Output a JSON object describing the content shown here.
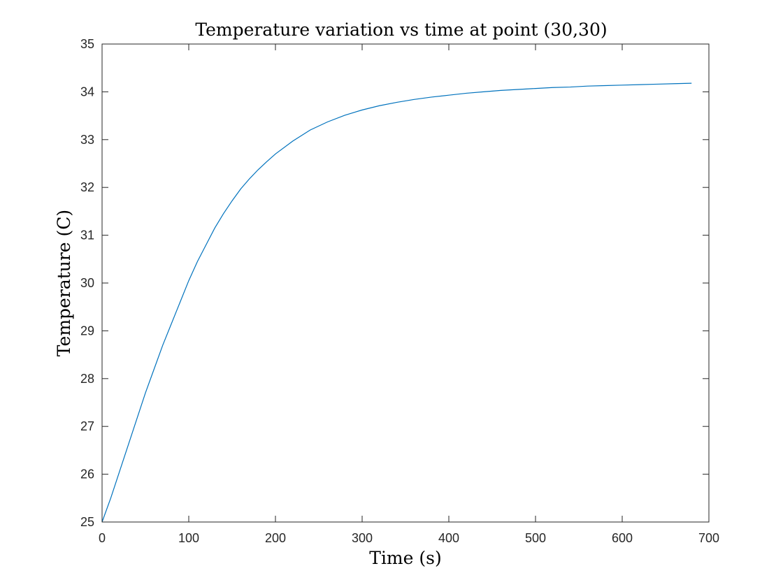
{
  "chart_data": {
    "type": "line",
    "title": "Temperature variation vs time at point (30,30)",
    "xlabel": "Time (s)",
    "ylabel": "Temperature (C)",
    "xlim": [
      0,
      700
    ],
    "ylim": [
      25,
      35
    ],
    "xticks": [
      "0",
      "100",
      "200",
      "300",
      "400",
      "500",
      "600",
      "700"
    ],
    "yticks": [
      "25",
      "26",
      "27",
      "28",
      "29",
      "30",
      "31",
      "32",
      "33",
      "34",
      "35"
    ],
    "grid": false,
    "legend": "none",
    "series": [
      {
        "color": "#0072BD",
        "x": [
          0,
          10,
          20,
          30,
          40,
          50,
          60,
          70,
          80,
          90,
          100,
          110,
          120,
          130,
          140,
          150,
          160,
          170,
          180,
          190,
          200,
          220,
          240,
          260,
          280,
          300,
          320,
          340,
          360,
          380,
          400,
          420,
          440,
          460,
          480,
          500,
          520,
          540,
          560,
          580,
          600,
          620,
          640,
          660,
          680
        ],
        "y": [
          25.0,
          25.5,
          26.05,
          26.6,
          27.15,
          27.7,
          28.2,
          28.7,
          29.15,
          29.6,
          30.05,
          30.45,
          30.8,
          31.15,
          31.45,
          31.72,
          31.97,
          32.18,
          32.37,
          32.54,
          32.7,
          32.97,
          33.2,
          33.37,
          33.51,
          33.62,
          33.71,
          33.78,
          33.84,
          33.89,
          33.93,
          33.97,
          34.0,
          34.03,
          34.05,
          34.07,
          34.09,
          34.1,
          34.12,
          34.13,
          34.14,
          34.15,
          34.16,
          34.17,
          34.18
        ]
      }
    ]
  }
}
